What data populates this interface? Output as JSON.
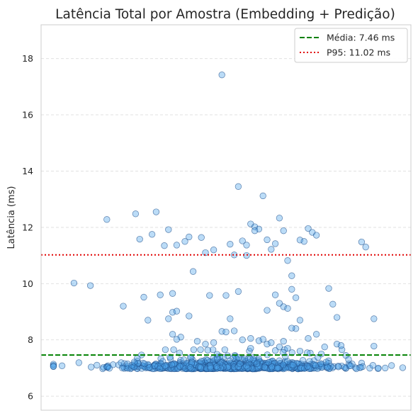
{
  "chart_data": {
    "type": "scatter",
    "title": "Latência Total por Amostra (Embedding + Predição)",
    "xlabel": "",
    "ylabel": "Latência (ms)",
    "ylim": [
      5.5,
      19.2
    ],
    "xlim": [
      -0.45,
      0.45
    ],
    "yticks": [
      6,
      8,
      10,
      12,
      14,
      16,
      18
    ],
    "grid": "y-dashed",
    "legend_position": "top-right",
    "point_color": "#4da3ea",
    "point_edge_color": "#1f4f8a",
    "mean": {
      "label": "Média: 7.46 ms",
      "value": 7.46,
      "color": "#008000"
    },
    "p95": {
      "label": "P95: 11.02 ms",
      "value": 11.02,
      "color": "#e00000"
    },
    "outliers": [
      [
        -0.01,
        17.42
      ],
      [
        0.03,
        13.45
      ],
      [
        0.09,
        13.12
      ],
      [
        -0.05,
        11.1
      ],
      [
        0.18,
        11.55
      ],
      [
        -0.37,
        10.02
      ],
      [
        -0.33,
        9.93
      ],
      [
        -0.29,
        12.28
      ],
      [
        -0.25,
        9.2
      ],
      [
        -0.22,
        12.48
      ],
      [
        -0.17,
        12.55
      ],
      [
        -0.14,
        11.92
      ],
      [
        -0.12,
        11.37
      ],
      [
        -0.09,
        11.66
      ],
      [
        -0.08,
        10.43
      ],
      [
        -0.06,
        11.64
      ],
      [
        -0.03,
        11.2
      ],
      [
        0.0,
        9.58
      ],
      [
        0.01,
        11.4
      ],
      [
        0.03,
        9.72
      ],
      [
        0.04,
        11.52
      ],
      [
        0.05,
        11.37
      ],
      [
        0.06,
        12.12
      ],
      [
        0.07,
        12.02
      ],
      [
        0.08,
        11.94
      ],
      [
        0.1,
        11.56
      ],
      [
        0.11,
        11.22
      ],
      [
        0.12,
        11.42
      ],
      [
        0.13,
        12.33
      ],
      [
        0.14,
        11.88
      ],
      [
        0.16,
        10.28
      ],
      [
        0.15,
        10.82
      ],
      [
        0.17,
        9.5
      ],
      [
        0.19,
        11.5
      ],
      [
        0.2,
        11.96
      ],
      [
        0.21,
        11.82
      ],
      [
        0.22,
        11.72
      ],
      [
        0.25,
        9.83
      ],
      [
        0.26,
        9.27
      ],
      [
        0.27,
        8.8
      ],
      [
        0.33,
        11.48
      ],
      [
        0.34,
        11.3
      ],
      [
        0.36,
        8.75
      ],
      [
        -0.21,
        11.58
      ],
      [
        -0.18,
        11.75
      ],
      [
        -0.16,
        9.6
      ],
      [
        -0.13,
        9.65
      ],
      [
        -0.1,
        11.5
      ],
      [
        -0.2,
        9.52
      ],
      [
        -0.15,
        11.35
      ],
      [
        0.07,
        11.88
      ],
      [
        0.05,
        11.0
      ],
      [
        0.02,
        11.02
      ],
      [
        0.1,
        9.05
      ],
      [
        0.12,
        9.6
      ],
      [
        0.13,
        9.3
      ],
      [
        0.14,
        9.18
      ],
      [
        0.15,
        9.12
      ],
      [
        0.16,
        9.8
      ],
      [
        0.18,
        8.7
      ],
      [
        -0.13,
        8.98
      ],
      [
        -0.12,
        9.02
      ],
      [
        -0.09,
        8.85
      ],
      [
        -0.04,
        9.58
      ],
      [
        0.01,
        8.75
      ],
      [
        0.22,
        8.2
      ],
      [
        0.2,
        8.05
      ],
      [
        0.17,
        8.4
      ],
      [
        0.16,
        8.42
      ],
      [
        0.27,
        7.85
      ],
      [
        -0.13,
        8.2
      ],
      [
        -0.11,
        8.1
      ],
      [
        -0.07,
        7.95
      ],
      [
        -0.05,
        7.85
      ],
      [
        -0.03,
        7.9
      ],
      [
        -0.01,
        8.3
      ],
      [
        0.0,
        8.28
      ],
      [
        0.02,
        8.32
      ],
      [
        0.04,
        8.0
      ],
      [
        0.06,
        8.05
      ],
      [
        0.08,
        7.97
      ],
      [
        0.09,
        8.02
      ],
      [
        0.1,
        7.85
      ],
      [
        0.11,
        7.9
      ],
      [
        0.13,
        7.75
      ],
      [
        0.15,
        7.7
      ],
      [
        0.18,
        7.6
      ],
      [
        0.24,
        7.75
      ],
      [
        0.28,
        7.8
      ],
      [
        0.36,
        7.78
      ],
      [
        -0.19,
        8.7
      ],
      [
        -0.14,
        8.75
      ],
      [
        -0.12,
        8.02
      ],
      [
        0.14,
        7.95
      ],
      [
        0.06,
        7.7
      ]
    ],
    "cluster": {
      "y_center": 7.05,
      "y_spread": 0.18,
      "x_range": [
        -0.42,
        0.43
      ],
      "count": 820
    }
  }
}
